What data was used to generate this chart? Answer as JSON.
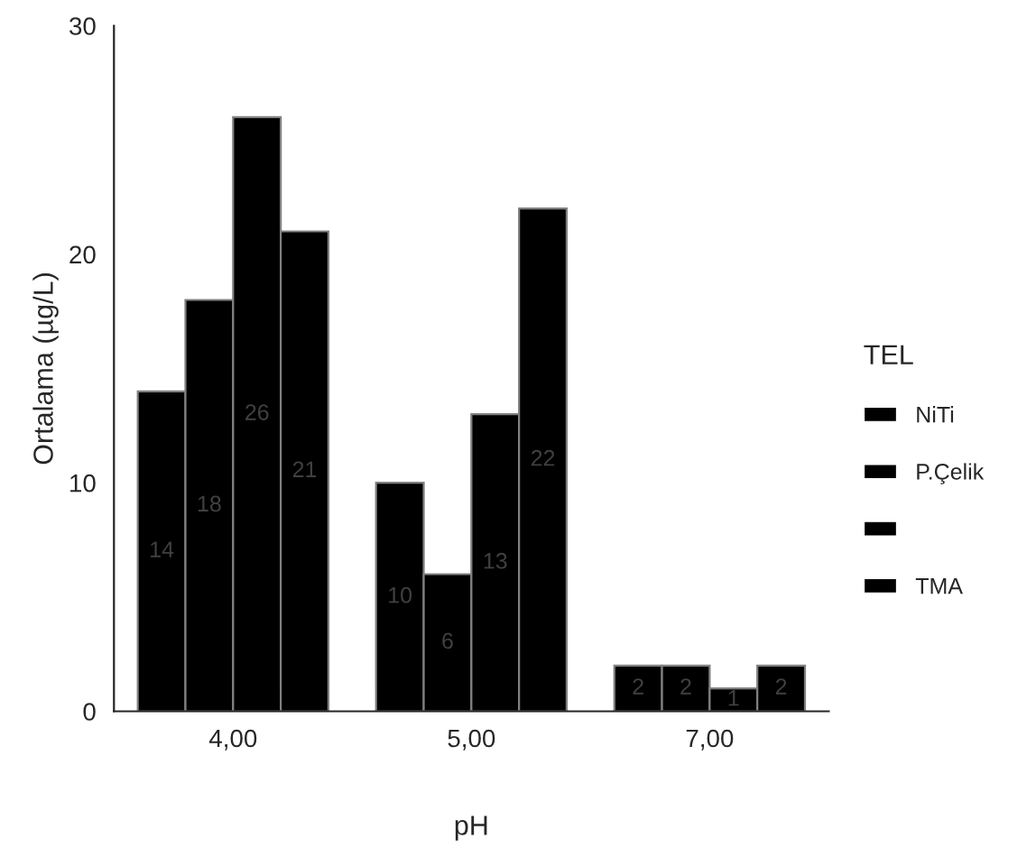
{
  "chart_data": {
    "type": "bar",
    "xlabel": "pH",
    "ylabel": "Ortalama (µg/L)",
    "legend_title": "TEL",
    "categories": [
      "4,00",
      "5,00",
      "7,00"
    ],
    "series": [
      {
        "name": "NiTi",
        "color": "#000000",
        "values": [
          14,
          10,
          2
        ]
      },
      {
        "name": "P.Çelik",
        "color": "#000000",
        "values": [
          18,
          6,
          2
        ]
      },
      {
        "color": "#000000",
        "values": [
          26,
          13,
          1
        ]
      },
      {
        "name": "TMA",
        "color": "#000000",
        "values": [
          21,
          22,
          2
        ]
      }
    ],
    "ylim": [
      0,
      30
    ],
    "yticks": [
      0,
      10,
      20,
      30
    ],
    "data_labels": true,
    "legend": "right",
    "grid": false
  }
}
